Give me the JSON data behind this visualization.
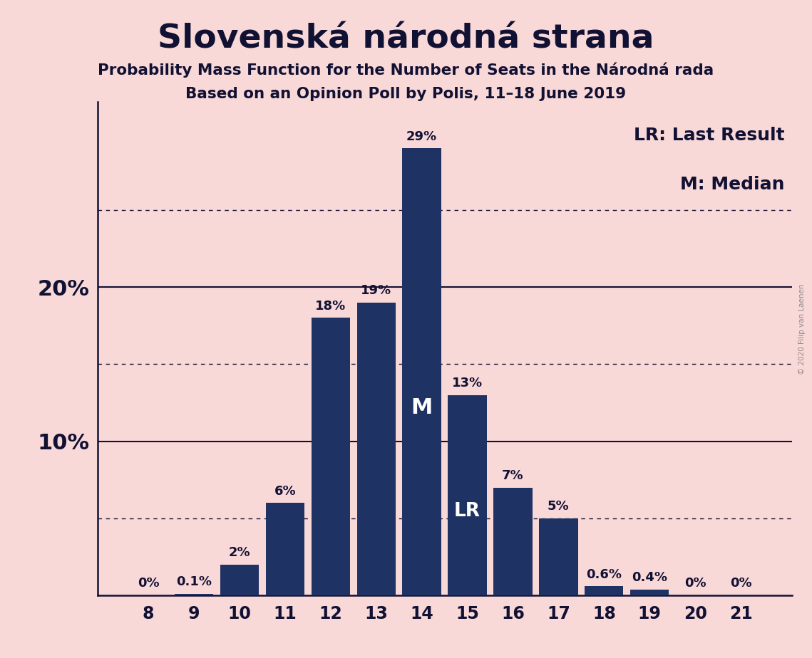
{
  "title": "Slovenská národná strana",
  "subtitle1": "Probability Mass Function for the Number of Seats in the Národná rada",
  "subtitle2": "Based on an Opinion Poll by Polis, 11–18 June 2019",
  "watermark": "© 2020 Filip van Laenen",
  "categories": [
    8,
    9,
    10,
    11,
    12,
    13,
    14,
    15,
    16,
    17,
    18,
    19,
    20,
    21
  ],
  "values": [
    0.0,
    0.1,
    2.0,
    6.0,
    18.0,
    19.0,
    29.0,
    13.0,
    7.0,
    5.0,
    0.6,
    0.4,
    0.0,
    0.0
  ],
  "labels": [
    "0%",
    "0.1%",
    "2%",
    "6%",
    "18%",
    "19%",
    "29%",
    "13%",
    "7%",
    "5%",
    "0.6%",
    "0.4%",
    "0%",
    "0%"
  ],
  "bar_color": "#1e3264",
  "background_color": "#f9d8d8",
  "text_color": "#111133",
  "white_text_color": "#ffffff",
  "median_bar": 14,
  "last_result_bar": 15,
  "legend_lr": "LR: Last Result",
  "legend_m": "M: Median",
  "dotted_lines": [
    5,
    15,
    25
  ],
  "solid_lines": [
    10,
    20
  ],
  "ylim": [
    0,
    32
  ]
}
